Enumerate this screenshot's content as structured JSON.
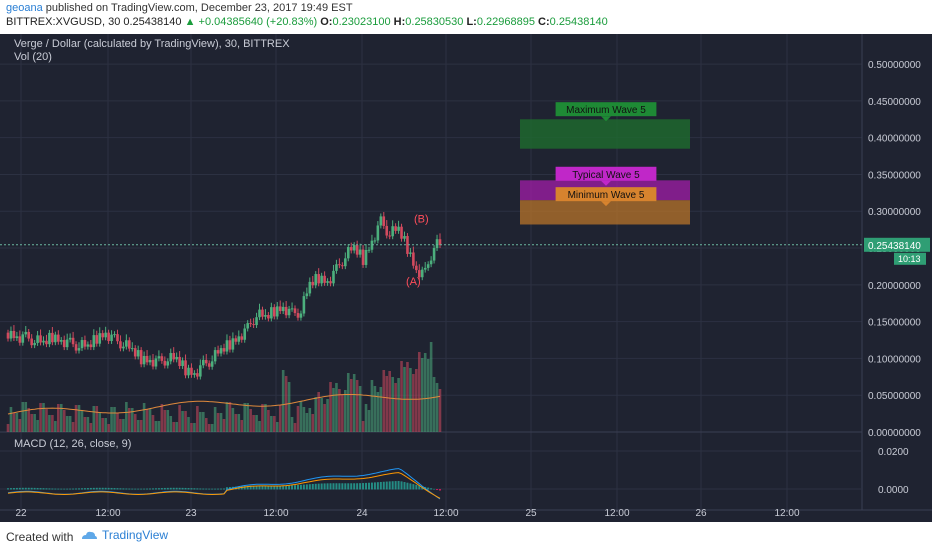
{
  "header": {
    "author": "geoana",
    "published": " published on TradingView.com, December 23, 2017 19:49 EST",
    "symbol": "BITTREX:XVGUSD, 30",
    "last": "0.25438140",
    "change": "+0.04385640 (+20.83%)",
    "o_label": "O:",
    "o": "0.23023100",
    "h_label": "H:",
    "h": "0.25830530",
    "l_label": "L:",
    "l": "0.22968895",
    "c_label": "C:",
    "c": "0.25438140"
  },
  "overlay": {
    "title": "Verge / Dollar (calculated by TradingView), 30, BITTREX",
    "vol": "Vol (20)",
    "macd": "MACD (12, 26, close, 9)"
  },
  "annotations": {
    "max_wave": "Maximum Wave 5",
    "typ_wave": "Typical Wave 5",
    "min_wave": "Minimum Wave 5",
    "b": "(B)",
    "a": "(A)"
  },
  "price_badge": "0.25438140",
  "timer": "10:13",
  "footer": {
    "created": "Created with",
    "brand": "TradingView"
  },
  "colors": {
    "up": "#4caf7d",
    "down": "#d24a5e",
    "bg": "#1f2331",
    "grid": "#2c3142"
  },
  "chart_data": [
    {
      "type": "candlestick",
      "y_ticks": [
        "0.50000000",
        "0.45000000",
        "0.40000000",
        "0.35000000",
        "0.30000000",
        "0.25000000",
        "0.20000000",
        "0.15000000",
        "0.10000000",
        "0.05000000",
        "0.00000000"
      ],
      "ylim": [
        0,
        0.53
      ],
      "x_ticks": [
        "22",
        "12:00",
        "23",
        "12:00",
        "24",
        "12:00",
        "25",
        "12:00",
        "26",
        "12:00"
      ],
      "approx_close_path": [
        0.135,
        0.13,
        0.128,
        0.125,
        0.12,
        0.13,
        0.125,
        0.12,
        0.118,
        0.115,
        0.128,
        0.135,
        0.125,
        0.12,
        0.11,
        0.1,
        0.098,
        0.095,
        0.1,
        0.098,
        0.085,
        0.08,
        0.09,
        0.1,
        0.11,
        0.12,
        0.13,
        0.14,
        0.16,
        0.155,
        0.165,
        0.17,
        0.16,
        0.165,
        0.2,
        0.21,
        0.205,
        0.22,
        0.24,
        0.25,
        0.235,
        0.26,
        0.285,
        0.27,
        0.275,
        0.25,
        0.22,
        0.215,
        0.254
      ]
    },
    {
      "type": "line",
      "title": "MACD (12, 26, close, 9)",
      "y_ticks": [
        "0.0200",
        "0.0000"
      ]
    }
  ]
}
